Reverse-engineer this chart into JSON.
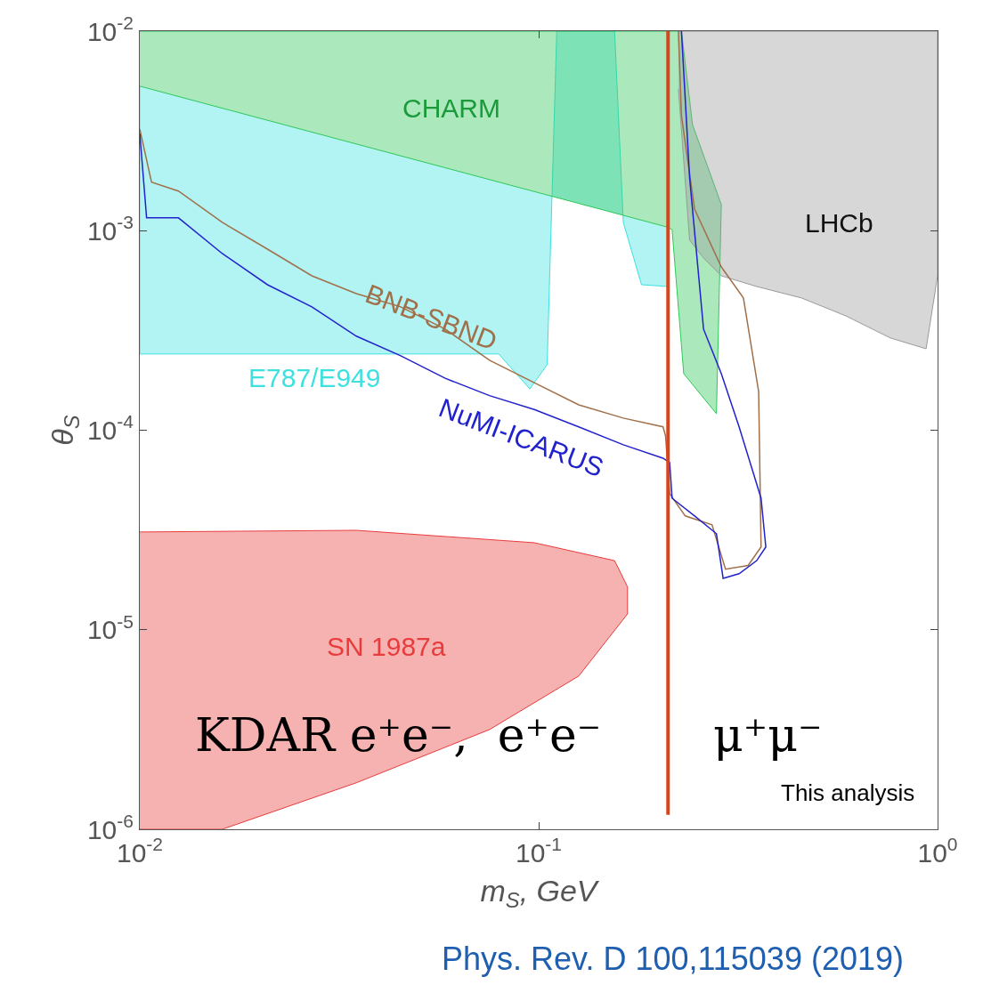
{
  "chart_data": {
    "type": "area",
    "xlabel": "m$_{S}$, GeV",
    "ylabel": "θ$_{S}$",
    "log": "xy",
    "legend": false,
    "xlim": [
      0.01,
      1
    ],
    "ylim": [
      1e-06,
      0.01
    ],
    "xticks": [
      {
        "value": 0.01,
        "label": "10$^{-2}$"
      },
      {
        "value": 0.1,
        "label": "10$^{-1}$"
      },
      {
        "value": 1,
        "label": "10$^{0}$"
      }
    ],
    "yticks": [
      {
        "value": 1e-06,
        "label": "10$^{-6}$"
      },
      {
        "value": 1e-05,
        "label": "10$^{-5}$"
      },
      {
        "value": 0.0001,
        "label": "10$^{-4}$"
      },
      {
        "value": 0.001,
        "label": "10$^{-3}$"
      },
      {
        "value": 0.01,
        "label": "10$^{-2}$"
      }
    ],
    "series": [
      {
        "name": "E787/E949",
        "color": "#3ee0e0",
        "x": [
          0.01,
          0.01,
          0.0794,
          0.095,
          0.105,
          0.111,
          0.155,
          0.163,
          0.181,
          0.211,
          0.211
        ],
        "values": [
          0.0053,
          0.000241,
          0.000241,
          0.000161,
          0.000213,
          0.01,
          0.01,
          0.0011,
          0.000536,
          0.000525,
          0.00104
        ]
      },
      {
        "name": "CHARM",
        "color": "#2ec85a",
        "x": [
          0.01,
          0.228,
          0.243,
          0.287,
          0.279,
          0.231,
          0.216,
          0.211,
          0.01
        ],
        "values": [
          0.01,
          0.01,
          0.0034,
          0.00135,
          0.000121,
          0.000192,
          0.00101,
          0.00104,
          0.0053
        ]
      },
      {
        "name": "LHCb",
        "color": "#9a9a9a",
        "x": [
          0.224,
          1,
          1,
          0.936,
          0.761,
          0.589,
          0.456,
          0.352,
          0.287,
          0.259,
          0.239,
          0.224
        ],
        "values": [
          0.01,
          0.01,
          0.000594,
          0.000256,
          0.00029,
          0.000374,
          0.00046,
          0.000525,
          0.000594,
          0.00073,
          0.000896,
          0.00513
        ]
      },
      {
        "name": "SN 1987a",
        "color": "#e83c3c",
        "x": [
          0.01,
          0.0349,
          0.0975,
          0.155,
          0.167,
          0.167,
          0.126,
          0.0753,
          0.0349,
          0.0161,
          0.01
        ],
        "values": [
          3.09e-05,
          3.15e-05,
          2.73e-05,
          2.22e-05,
          1.64e-05,
          1.2e-05,
          5.86e-06,
          3.16e-06,
          1.71e-06,
          1e-06,
          1e-06
        ]
      },
      {
        "name": "BNB-SBND",
        "type": "line",
        "color": "#a0704a",
        "x": [
          0.01,
          0.0107,
          0.0125,
          0.0161,
          0.0209,
          0.027,
          0.0349,
          0.0451,
          0.0583,
          0.0753,
          0.0975,
          0.126,
          0.163,
          0.205,
          0.208,
          0.213,
          0.233,
          0.272,
          0.294,
          0.335,
          0.361,
          0.356,
          0.326,
          0.287,
          0.246,
          0.228,
          0.224
        ],
        "values": [
          0.00323,
          0.00175,
          0.00158,
          0.0011,
          0.000808,
          0.000594,
          0.000484,
          0.000415,
          0.000321,
          0.000224,
          0.000173,
          0.000134,
          0.000115,
          0.000104,
          9.37e-05,
          4.81e-05,
          3.72e-05,
          3.36e-05,
          2.01e-05,
          2.1e-05,
          2.6e-05,
          0.000156,
          0.00046,
          0.000658,
          0.00128,
          0.00377,
          0.01
        ]
      },
      {
        "name": "NuMI-ICARUS",
        "type": "line",
        "color": "#2222cc",
        "x": [
          0.01,
          0.0104,
          0.0125,
          0.0161,
          0.0209,
          0.027,
          0.0349,
          0.0451,
          0.0583,
          0.0753,
          0.0975,
          0.126,
          0.163,
          0.205,
          0.213,
          0.216,
          0.246,
          0.279,
          0.29,
          0.318,
          0.352,
          0.371,
          0.361,
          0.318,
          0.287,
          0.259,
          0.239,
          0.228
        ],
        "values": [
          0.00307,
          0.00116,
          0.00116,
          0.000768,
          0.000536,
          0.000415,
          0.000296,
          0.000236,
          0.000182,
          0.000149,
          0.000127,
          0.000104,
          8.45e-05,
          7.24e-05,
          6.88e-05,
          4.56e-05,
          3.72e-05,
          3.03e-05,
          1.81e-05,
          1.91e-05,
          2.22e-05,
          2.6e-05,
          4.56e-05,
          0.000104,
          0.000192,
          0.000321,
          0.00184,
          0.01
        ]
      }
    ],
    "ref_lines": [
      {
        "axis": "x",
        "value": 0.211,
        "color": "#d9441c",
        "line_style": "solid"
      }
    ],
    "annotations": [
      "KDAR e⁺e⁻,  e⁺e⁻",
      "μ⁺μ⁻",
      "This analysis",
      "Phys. Rev. D 100,115039 (2019)"
    ]
  }
}
